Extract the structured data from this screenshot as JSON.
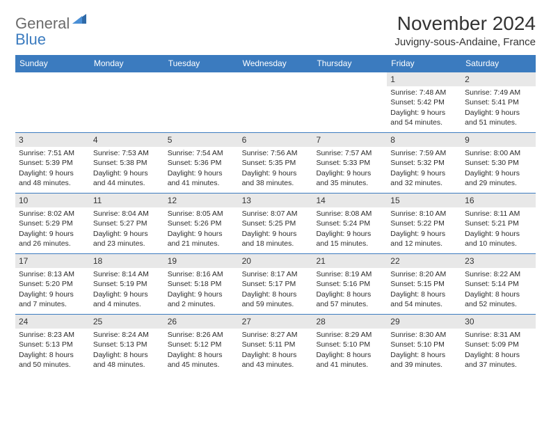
{
  "logo": {
    "general": "General",
    "blue": "Blue"
  },
  "title": "November 2024",
  "location": "Juvigny-sous-Andaine, France",
  "colors": {
    "header_bg": "#3b7bbf",
    "header_text": "#ffffff",
    "daynum_bg": "#e8e8e8",
    "text": "#2b2b2b",
    "border": "#3b7bbf"
  },
  "day_names": [
    "Sunday",
    "Monday",
    "Tuesday",
    "Wednesday",
    "Thursday",
    "Friday",
    "Saturday"
  ],
  "weeks": [
    [
      {
        "n": "",
        "sr": "",
        "ss": "",
        "dl": ""
      },
      {
        "n": "",
        "sr": "",
        "ss": "",
        "dl": ""
      },
      {
        "n": "",
        "sr": "",
        "ss": "",
        "dl": ""
      },
      {
        "n": "",
        "sr": "",
        "ss": "",
        "dl": ""
      },
      {
        "n": "",
        "sr": "",
        "ss": "",
        "dl": ""
      },
      {
        "n": "1",
        "sr": "Sunrise: 7:48 AM",
        "ss": "Sunset: 5:42 PM",
        "dl": "Daylight: 9 hours and 54 minutes."
      },
      {
        "n": "2",
        "sr": "Sunrise: 7:49 AM",
        "ss": "Sunset: 5:41 PM",
        "dl": "Daylight: 9 hours and 51 minutes."
      }
    ],
    [
      {
        "n": "3",
        "sr": "Sunrise: 7:51 AM",
        "ss": "Sunset: 5:39 PM",
        "dl": "Daylight: 9 hours and 48 minutes."
      },
      {
        "n": "4",
        "sr": "Sunrise: 7:53 AM",
        "ss": "Sunset: 5:38 PM",
        "dl": "Daylight: 9 hours and 44 minutes."
      },
      {
        "n": "5",
        "sr": "Sunrise: 7:54 AM",
        "ss": "Sunset: 5:36 PM",
        "dl": "Daylight: 9 hours and 41 minutes."
      },
      {
        "n": "6",
        "sr": "Sunrise: 7:56 AM",
        "ss": "Sunset: 5:35 PM",
        "dl": "Daylight: 9 hours and 38 minutes."
      },
      {
        "n": "7",
        "sr": "Sunrise: 7:57 AM",
        "ss": "Sunset: 5:33 PM",
        "dl": "Daylight: 9 hours and 35 minutes."
      },
      {
        "n": "8",
        "sr": "Sunrise: 7:59 AM",
        "ss": "Sunset: 5:32 PM",
        "dl": "Daylight: 9 hours and 32 minutes."
      },
      {
        "n": "9",
        "sr": "Sunrise: 8:00 AM",
        "ss": "Sunset: 5:30 PM",
        "dl": "Daylight: 9 hours and 29 minutes."
      }
    ],
    [
      {
        "n": "10",
        "sr": "Sunrise: 8:02 AM",
        "ss": "Sunset: 5:29 PM",
        "dl": "Daylight: 9 hours and 26 minutes."
      },
      {
        "n": "11",
        "sr": "Sunrise: 8:04 AM",
        "ss": "Sunset: 5:27 PM",
        "dl": "Daylight: 9 hours and 23 minutes."
      },
      {
        "n": "12",
        "sr": "Sunrise: 8:05 AM",
        "ss": "Sunset: 5:26 PM",
        "dl": "Daylight: 9 hours and 21 minutes."
      },
      {
        "n": "13",
        "sr": "Sunrise: 8:07 AM",
        "ss": "Sunset: 5:25 PM",
        "dl": "Daylight: 9 hours and 18 minutes."
      },
      {
        "n": "14",
        "sr": "Sunrise: 8:08 AM",
        "ss": "Sunset: 5:24 PM",
        "dl": "Daylight: 9 hours and 15 minutes."
      },
      {
        "n": "15",
        "sr": "Sunrise: 8:10 AM",
        "ss": "Sunset: 5:22 PM",
        "dl": "Daylight: 9 hours and 12 minutes."
      },
      {
        "n": "16",
        "sr": "Sunrise: 8:11 AM",
        "ss": "Sunset: 5:21 PM",
        "dl": "Daylight: 9 hours and 10 minutes."
      }
    ],
    [
      {
        "n": "17",
        "sr": "Sunrise: 8:13 AM",
        "ss": "Sunset: 5:20 PM",
        "dl": "Daylight: 9 hours and 7 minutes."
      },
      {
        "n": "18",
        "sr": "Sunrise: 8:14 AM",
        "ss": "Sunset: 5:19 PM",
        "dl": "Daylight: 9 hours and 4 minutes."
      },
      {
        "n": "19",
        "sr": "Sunrise: 8:16 AM",
        "ss": "Sunset: 5:18 PM",
        "dl": "Daylight: 9 hours and 2 minutes."
      },
      {
        "n": "20",
        "sr": "Sunrise: 8:17 AM",
        "ss": "Sunset: 5:17 PM",
        "dl": "Daylight: 8 hours and 59 minutes."
      },
      {
        "n": "21",
        "sr": "Sunrise: 8:19 AM",
        "ss": "Sunset: 5:16 PM",
        "dl": "Daylight: 8 hours and 57 minutes."
      },
      {
        "n": "22",
        "sr": "Sunrise: 8:20 AM",
        "ss": "Sunset: 5:15 PM",
        "dl": "Daylight: 8 hours and 54 minutes."
      },
      {
        "n": "23",
        "sr": "Sunrise: 8:22 AM",
        "ss": "Sunset: 5:14 PM",
        "dl": "Daylight: 8 hours and 52 minutes."
      }
    ],
    [
      {
        "n": "24",
        "sr": "Sunrise: 8:23 AM",
        "ss": "Sunset: 5:13 PM",
        "dl": "Daylight: 8 hours and 50 minutes."
      },
      {
        "n": "25",
        "sr": "Sunrise: 8:24 AM",
        "ss": "Sunset: 5:13 PM",
        "dl": "Daylight: 8 hours and 48 minutes."
      },
      {
        "n": "26",
        "sr": "Sunrise: 8:26 AM",
        "ss": "Sunset: 5:12 PM",
        "dl": "Daylight: 8 hours and 45 minutes."
      },
      {
        "n": "27",
        "sr": "Sunrise: 8:27 AM",
        "ss": "Sunset: 5:11 PM",
        "dl": "Daylight: 8 hours and 43 minutes."
      },
      {
        "n": "28",
        "sr": "Sunrise: 8:29 AM",
        "ss": "Sunset: 5:10 PM",
        "dl": "Daylight: 8 hours and 41 minutes."
      },
      {
        "n": "29",
        "sr": "Sunrise: 8:30 AM",
        "ss": "Sunset: 5:10 PM",
        "dl": "Daylight: 8 hours and 39 minutes."
      },
      {
        "n": "30",
        "sr": "Sunrise: 8:31 AM",
        "ss": "Sunset: 5:09 PM",
        "dl": "Daylight: 8 hours and 37 minutes."
      }
    ]
  ]
}
